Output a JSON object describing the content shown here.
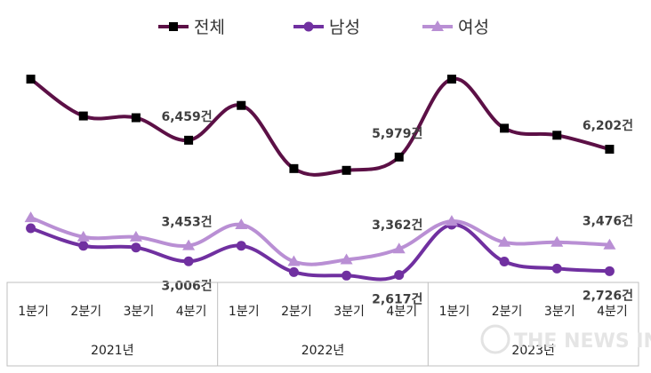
{
  "chart_data": {
    "type": "line",
    "categories": [
      "1분기",
      "2분기",
      "3분기",
      "4분기",
      "1분기",
      "2분기",
      "3분기",
      "4분기",
      "1분기",
      "2분기",
      "3분기",
      "4분기"
    ],
    "year_groups": [
      {
        "label": "2021년",
        "span": 4
      },
      {
        "label": "2022년",
        "span": 4
      },
      {
        "label": "2023년",
        "span": 4
      }
    ],
    "series": [
      {
        "name": "전체",
        "color": "#5c1046",
        "marker": "square",
        "values": [
          8200,
          7150,
          7100,
          6459,
          7450,
          5650,
          5600,
          5979,
          8200,
          6800,
          6600,
          6202
        ]
      },
      {
        "name": "남성",
        "color": "#7030a0",
        "marker": "circle",
        "values": [
          3950,
          3450,
          3400,
          3006,
          3450,
          2700,
          2600,
          2617,
          4050,
          3000,
          2800,
          2726
        ]
      },
      {
        "name": "여성",
        "color": "#b98fd4",
        "marker": "triangle",
        "values": [
          4250,
          3700,
          3700,
          3453,
          4050,
          3000,
          3050,
          3362,
          4150,
          3550,
          3550,
          3476
        ]
      }
    ],
    "data_labels": [
      {
        "series": 0,
        "index": 3,
        "text": "6,459건"
      },
      {
        "series": 0,
        "index": 7,
        "text": "5,979건"
      },
      {
        "series": 0,
        "index": 11,
        "text": "6,202건"
      },
      {
        "series": 2,
        "index": 3,
        "text": "3,453건"
      },
      {
        "series": 2,
        "index": 7,
        "text": "3,362건"
      },
      {
        "series": 2,
        "index": 11,
        "text": "3,476건"
      },
      {
        "series": 1,
        "index": 3,
        "text": "3,006건"
      },
      {
        "series": 1,
        "index": 7,
        "text": "2,617건"
      },
      {
        "series": 1,
        "index": 11,
        "text": "2,726건"
      }
    ],
    "legend_position": "top-center",
    "grid": false
  },
  "watermark": {
    "text": "THE NEWS IN"
  }
}
